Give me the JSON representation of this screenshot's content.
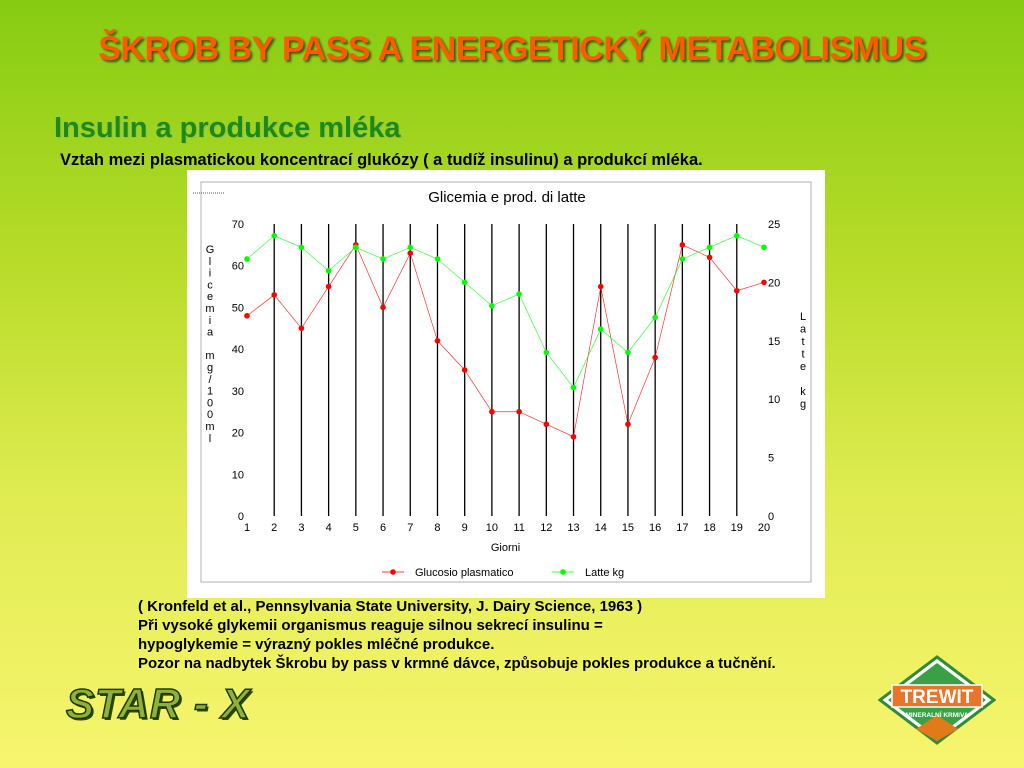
{
  "slide": {
    "title": "ŠKROB BY PASS  A ENERGETICKÝ METABOLISMUS",
    "subtitle": "Insulin a produkce mléka",
    "lead": "Vztah mezi plasmatickou koncentrací  glukózy ( a tudíž insulinu) a produkcí mléka.",
    "notes": [
      "( Kronfeld et al., Pennsylvania State University, J. Dairy Science, 1963 )",
      "Při vysoké glykemii organismus reaguje silnou sekrecí insulinu =",
      "hypoglykemie = výrazný pokles mléčné produkce.",
      "Pozor na nadbytek Škrobu by pass v krmné dávce, způsobuje pokles produkce a tučnění."
    ],
    "logo_text": "STAR - X",
    "brand": {
      "name": "TREWIT",
      "tagline": "MINERALNÍ KRMIVA"
    }
  },
  "colors": {
    "title": "#ff5a00",
    "subtitle": "#1c8a14",
    "glucose": "#ff0000",
    "latte": "#00ff00"
  },
  "chart_data": {
    "type": "line",
    "title": "Glicemia e prod. di latte",
    "xlabel": "Giorni",
    "ylabel_left": "Glicemia mg/100ml",
    "ylabel_right": "Latte kg",
    "x": [
      1,
      2,
      3,
      4,
      5,
      6,
      7,
      8,
      9,
      10,
      11,
      12,
      13,
      14,
      15,
      16,
      17,
      18,
      19,
      20
    ],
    "ylim_left": [
      0,
      70
    ],
    "yticks_left": [
      0,
      10,
      20,
      30,
      40,
      50,
      60,
      70
    ],
    "ylim_right": [
      0,
      25
    ],
    "yticks_right": [
      0,
      5,
      10,
      15,
      20,
      25
    ],
    "series": [
      {
        "name": "Glucosio plasmatico",
        "axis": "left",
        "values": [
          48,
          53,
          45,
          55,
          65,
          50,
          63,
          42,
          35,
          25,
          25,
          22,
          19,
          55,
          22,
          38,
          65,
          62,
          54,
          56
        ]
      },
      {
        "name": "Latte kg",
        "axis": "right",
        "values": [
          22,
          24,
          23,
          21,
          23,
          22,
          23,
          22,
          20,
          18,
          19,
          14,
          11,
          16,
          14,
          17,
          22,
          23,
          24,
          23
        ]
      }
    ],
    "legend": "bottom",
    "grid": "vertical"
  }
}
